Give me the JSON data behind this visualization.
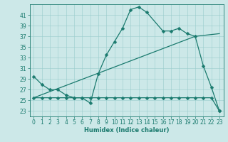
{
  "title": "",
  "xlabel": "Humidex (Indice chaleur)",
  "background_color": "#cce8e8",
  "line_color": "#1a7a6e",
  "grid_color": "#99cccc",
  "xlim": [
    -0.5,
    23.5
  ],
  "ylim": [
    22.0,
    43.0
  ],
  "xticks": [
    0,
    1,
    2,
    3,
    4,
    5,
    6,
    7,
    8,
    9,
    10,
    11,
    12,
    13,
    14,
    15,
    16,
    17,
    18,
    19,
    20,
    21,
    22,
    23
  ],
  "yticks": [
    23,
    25,
    27,
    29,
    31,
    33,
    35,
    37,
    39,
    41
  ],
  "series1_x": [
    0,
    1,
    2,
    3,
    4,
    5,
    6,
    7,
    8,
    9,
    10,
    11,
    12,
    13,
    14,
    16,
    17,
    18,
    19,
    20,
    21,
    22,
    23
  ],
  "series1_y": [
    29.5,
    28.0,
    27.0,
    27.0,
    26.0,
    25.5,
    25.5,
    24.5,
    30.0,
    33.5,
    36.0,
    38.5,
    42.0,
    42.5,
    41.5,
    38.0,
    38.0,
    38.5,
    37.5,
    37.0,
    31.5,
    27.5,
    23.0
  ],
  "series2_x": [
    0,
    1,
    2,
    3,
    4,
    5,
    6,
    7,
    8,
    9,
    10,
    11,
    12,
    13,
    14,
    15,
    16,
    17,
    18,
    19,
    20,
    21,
    22,
    23
  ],
  "series2_y": [
    25.5,
    25.5,
    25.5,
    25.5,
    25.5,
    25.5,
    25.5,
    25.5,
    25.5,
    25.5,
    25.5,
    25.5,
    25.5,
    25.5,
    25.5,
    25.5,
    25.5,
    25.5,
    25.5,
    25.5,
    25.5,
    25.5,
    25.5,
    23.0
  ],
  "series3_x": [
    0,
    20,
    23
  ],
  "series3_y": [
    25.5,
    37.0,
    37.5
  ],
  "marker_size": 2.5,
  "linewidth": 0.9,
  "tick_fontsize": 5.5,
  "xlabel_fontsize": 6.0
}
